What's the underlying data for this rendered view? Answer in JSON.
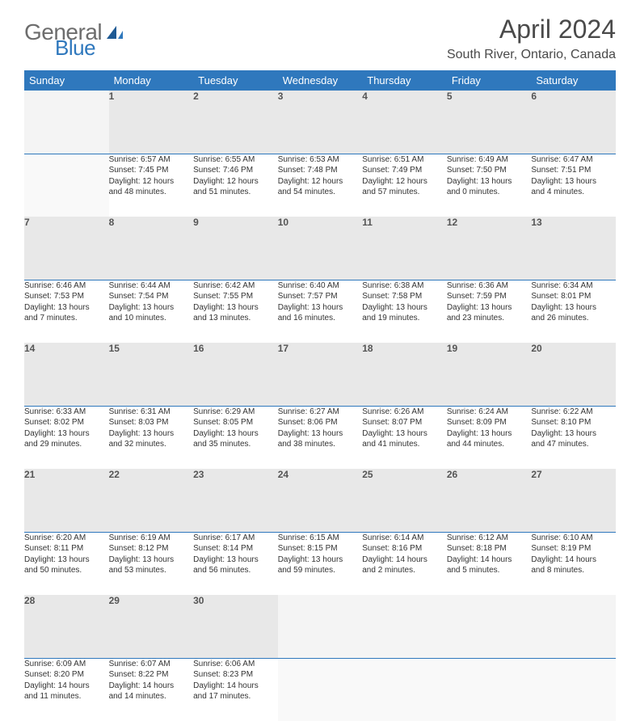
{
  "logo": {
    "text1": "General",
    "text2": "Blue"
  },
  "title": "April 2024",
  "location": "South River, Ontario, Canada",
  "colors": {
    "header_bg": "#2f78bd",
    "header_text": "#ffffff",
    "daynum_bg": "#e8e8e8",
    "daynum_border": "#2f78bd",
    "body_text": "#333333",
    "logo_gray": "#6d6d6d",
    "logo_blue": "#2f78bd"
  },
  "weekdays": [
    "Sunday",
    "Monday",
    "Tuesday",
    "Wednesday",
    "Thursday",
    "Friday",
    "Saturday"
  ],
  "weeks": [
    {
      "nums": [
        "",
        "1",
        "2",
        "3",
        "4",
        "5",
        "6"
      ],
      "cells": [
        null,
        {
          "sunrise": "Sunrise: 6:57 AM",
          "sunset": "Sunset: 7:45 PM",
          "day1": "Daylight: 12 hours",
          "day2": "and 48 minutes."
        },
        {
          "sunrise": "Sunrise: 6:55 AM",
          "sunset": "Sunset: 7:46 PM",
          "day1": "Daylight: 12 hours",
          "day2": "and 51 minutes."
        },
        {
          "sunrise": "Sunrise: 6:53 AM",
          "sunset": "Sunset: 7:48 PM",
          "day1": "Daylight: 12 hours",
          "day2": "and 54 minutes."
        },
        {
          "sunrise": "Sunrise: 6:51 AM",
          "sunset": "Sunset: 7:49 PM",
          "day1": "Daylight: 12 hours",
          "day2": "and 57 minutes."
        },
        {
          "sunrise": "Sunrise: 6:49 AM",
          "sunset": "Sunset: 7:50 PM",
          "day1": "Daylight: 13 hours",
          "day2": "and 0 minutes."
        },
        {
          "sunrise": "Sunrise: 6:47 AM",
          "sunset": "Sunset: 7:51 PM",
          "day1": "Daylight: 13 hours",
          "day2": "and 4 minutes."
        }
      ]
    },
    {
      "nums": [
        "7",
        "8",
        "9",
        "10",
        "11",
        "12",
        "13"
      ],
      "cells": [
        {
          "sunrise": "Sunrise: 6:46 AM",
          "sunset": "Sunset: 7:53 PM",
          "day1": "Daylight: 13 hours",
          "day2": "and 7 minutes."
        },
        {
          "sunrise": "Sunrise: 6:44 AM",
          "sunset": "Sunset: 7:54 PM",
          "day1": "Daylight: 13 hours",
          "day2": "and 10 minutes."
        },
        {
          "sunrise": "Sunrise: 6:42 AM",
          "sunset": "Sunset: 7:55 PM",
          "day1": "Daylight: 13 hours",
          "day2": "and 13 minutes."
        },
        {
          "sunrise": "Sunrise: 6:40 AM",
          "sunset": "Sunset: 7:57 PM",
          "day1": "Daylight: 13 hours",
          "day2": "and 16 minutes."
        },
        {
          "sunrise": "Sunrise: 6:38 AM",
          "sunset": "Sunset: 7:58 PM",
          "day1": "Daylight: 13 hours",
          "day2": "and 19 minutes."
        },
        {
          "sunrise": "Sunrise: 6:36 AM",
          "sunset": "Sunset: 7:59 PM",
          "day1": "Daylight: 13 hours",
          "day2": "and 23 minutes."
        },
        {
          "sunrise": "Sunrise: 6:34 AM",
          "sunset": "Sunset: 8:01 PM",
          "day1": "Daylight: 13 hours",
          "day2": "and 26 minutes."
        }
      ]
    },
    {
      "nums": [
        "14",
        "15",
        "16",
        "17",
        "18",
        "19",
        "20"
      ],
      "cells": [
        {
          "sunrise": "Sunrise: 6:33 AM",
          "sunset": "Sunset: 8:02 PM",
          "day1": "Daylight: 13 hours",
          "day2": "and 29 minutes."
        },
        {
          "sunrise": "Sunrise: 6:31 AM",
          "sunset": "Sunset: 8:03 PM",
          "day1": "Daylight: 13 hours",
          "day2": "and 32 minutes."
        },
        {
          "sunrise": "Sunrise: 6:29 AM",
          "sunset": "Sunset: 8:05 PM",
          "day1": "Daylight: 13 hours",
          "day2": "and 35 minutes."
        },
        {
          "sunrise": "Sunrise: 6:27 AM",
          "sunset": "Sunset: 8:06 PM",
          "day1": "Daylight: 13 hours",
          "day2": "and 38 minutes."
        },
        {
          "sunrise": "Sunrise: 6:26 AM",
          "sunset": "Sunset: 8:07 PM",
          "day1": "Daylight: 13 hours",
          "day2": "and 41 minutes."
        },
        {
          "sunrise": "Sunrise: 6:24 AM",
          "sunset": "Sunset: 8:09 PM",
          "day1": "Daylight: 13 hours",
          "day2": "and 44 minutes."
        },
        {
          "sunrise": "Sunrise: 6:22 AM",
          "sunset": "Sunset: 8:10 PM",
          "day1": "Daylight: 13 hours",
          "day2": "and 47 minutes."
        }
      ]
    },
    {
      "nums": [
        "21",
        "22",
        "23",
        "24",
        "25",
        "26",
        "27"
      ],
      "cells": [
        {
          "sunrise": "Sunrise: 6:20 AM",
          "sunset": "Sunset: 8:11 PM",
          "day1": "Daylight: 13 hours",
          "day2": "and 50 minutes."
        },
        {
          "sunrise": "Sunrise: 6:19 AM",
          "sunset": "Sunset: 8:12 PM",
          "day1": "Daylight: 13 hours",
          "day2": "and 53 minutes."
        },
        {
          "sunrise": "Sunrise: 6:17 AM",
          "sunset": "Sunset: 8:14 PM",
          "day1": "Daylight: 13 hours",
          "day2": "and 56 minutes."
        },
        {
          "sunrise": "Sunrise: 6:15 AM",
          "sunset": "Sunset: 8:15 PM",
          "day1": "Daylight: 13 hours",
          "day2": "and 59 minutes."
        },
        {
          "sunrise": "Sunrise: 6:14 AM",
          "sunset": "Sunset: 8:16 PM",
          "day1": "Daylight: 14 hours",
          "day2": "and 2 minutes."
        },
        {
          "sunrise": "Sunrise: 6:12 AM",
          "sunset": "Sunset: 8:18 PM",
          "day1": "Daylight: 14 hours",
          "day2": "and 5 minutes."
        },
        {
          "sunrise": "Sunrise: 6:10 AM",
          "sunset": "Sunset: 8:19 PM",
          "day1": "Daylight: 14 hours",
          "day2": "and 8 minutes."
        }
      ]
    },
    {
      "nums": [
        "28",
        "29",
        "30",
        "",
        "",
        "",
        ""
      ],
      "cells": [
        {
          "sunrise": "Sunrise: 6:09 AM",
          "sunset": "Sunset: 8:20 PM",
          "day1": "Daylight: 14 hours",
          "day2": "and 11 minutes."
        },
        {
          "sunrise": "Sunrise: 6:07 AM",
          "sunset": "Sunset: 8:22 PM",
          "day1": "Daylight: 14 hours",
          "day2": "and 14 minutes."
        },
        {
          "sunrise": "Sunrise: 6:06 AM",
          "sunset": "Sunset: 8:23 PM",
          "day1": "Daylight: 14 hours",
          "day2": "and 17 minutes."
        },
        null,
        null,
        null,
        null
      ]
    }
  ]
}
